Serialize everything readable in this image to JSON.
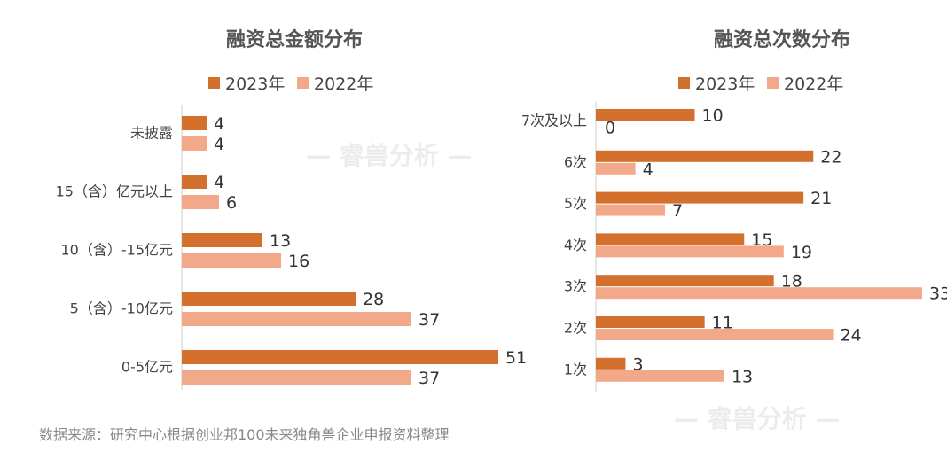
{
  "colors": {
    "2023": "#D4702E",
    "2022": "#F2A98A"
  },
  "watermark": "— 睿兽分析 —",
  "source": "数据来源：研究中心根据创业邦100未来独角兽企业申报资料整理",
  "chart_data": [
    {
      "type": "bar",
      "orientation": "horizontal",
      "title": "融资总金额分布",
      "categories": [
        "未披露",
        "15（含）亿元以上",
        "10（含）-15亿元",
        "5（含）-10亿元",
        "0-5亿元"
      ],
      "series": [
        {
          "name": "2023年",
          "values": [
            4,
            4,
            13,
            28,
            51
          ]
        },
        {
          "name": "2022年",
          "values": [
            4,
            6,
            16,
            37,
            37
          ]
        }
      ],
      "legend": "top",
      "grid": false
    },
    {
      "type": "bar",
      "orientation": "horizontal",
      "title": "融资总次数分布",
      "categories": [
        "7次及以上",
        "6次",
        "5次",
        "4次",
        "3次",
        "2次",
        "1次"
      ],
      "series": [
        {
          "name": "2023年",
          "values": [
            10,
            22,
            21,
            15,
            18,
            11,
            3
          ]
        },
        {
          "name": "2022年",
          "values": [
            0,
            4,
            7,
            19,
            33,
            24,
            13
          ]
        }
      ],
      "legend": "top",
      "grid": false
    }
  ]
}
